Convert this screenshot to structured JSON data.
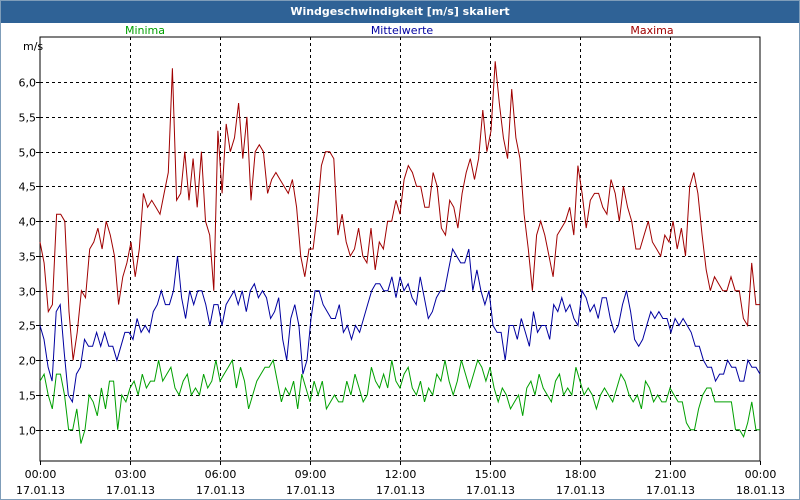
{
  "window": {
    "title": "Windgeschwindigkeit [m/s] skaliert"
  },
  "chart_data": {
    "type": "line",
    "title": "Windgeschwindigkeit [m/s] skaliert",
    "ylabel": "m/s",
    "xlabel": "",
    "ylim": [
      0.55,
      6.65
    ],
    "xlim": [
      0,
      24
    ],
    "grid": true,
    "yticks": [
      1.0,
      1.5,
      2.0,
      2.5,
      3.0,
      3.5,
      4.0,
      4.5,
      5.0,
      5.5,
      6.0
    ],
    "ytick_labels": [
      "1,0",
      "1,5",
      "2,0",
      "2,5",
      "3,0",
      "3,5",
      "4,0",
      "4,5",
      "5,0",
      "5,5",
      "6,0"
    ],
    "xtick_labels": [
      {
        "time": "00:00",
        "date": "17.01.13"
      },
      {
        "time": "03:00",
        "date": "17.01.13"
      },
      {
        "time": "06:00",
        "date": "17.01.13"
      },
      {
        "time": "09:00",
        "date": "17.01.13"
      },
      {
        "time": "12:00",
        "date": "17.01.13"
      },
      {
        "time": "15:00",
        "date": "17.01.13"
      },
      {
        "time": "18:00",
        "date": "17.01.13"
      },
      {
        "time": "21:00",
        "date": "17.01.13"
      },
      {
        "time": "00:00",
        "date": "18.01.13"
      }
    ],
    "series": [
      {
        "name": "Minima",
        "color": "#00a000",
        "values": [
          1.7,
          1.8,
          1.5,
          1.3,
          1.8,
          1.8,
          1.5,
          1.0,
          1.0,
          1.3,
          0.8,
          1.0,
          1.5,
          1.4,
          1.2,
          1.6,
          1.3,
          1.7,
          1.7,
          1.0,
          1.5,
          1.4,
          1.6,
          1.7,
          1.5,
          1.8,
          1.6,
          1.7,
          1.7,
          2.0,
          1.7,
          1.8,
          1.9,
          1.6,
          1.5,
          1.7,
          1.8,
          1.5,
          1.6,
          1.5,
          1.8,
          1.6,
          1.7,
          2.0,
          1.7,
          1.8,
          1.9,
          2.0,
          1.6,
          1.9,
          1.7,
          1.3,
          1.5,
          1.7,
          1.8,
          1.9,
          1.9,
          2.0,
          1.7,
          1.4,
          1.6,
          1.5,
          1.7,
          1.3,
          1.8,
          1.6,
          1.4,
          1.7,
          1.5,
          1.7,
          1.3,
          1.4,
          1.5,
          1.4,
          1.4,
          1.7,
          1.5,
          1.8,
          1.6,
          1.4,
          1.5,
          1.9,
          1.7,
          1.6,
          1.8,
          1.6,
          2.0,
          1.7,
          1.6,
          1.8,
          1.9,
          1.6,
          1.5,
          1.7,
          1.4,
          1.6,
          1.5,
          1.8,
          1.7,
          2.0,
          1.7,
          1.5,
          1.7,
          2.0,
          1.8,
          1.6,
          1.8,
          2.0,
          1.9,
          1.7,
          1.9,
          1.6,
          1.4,
          1.6,
          1.5,
          1.3,
          1.4,
          1.5,
          1.2,
          1.6,
          1.7,
          1.5,
          1.8,
          1.6,
          1.5,
          1.4,
          1.7,
          1.8,
          1.5,
          1.6,
          1.5,
          1.9,
          1.7,
          1.5,
          1.6,
          1.5,
          1.3,
          1.5,
          1.6,
          1.5,
          1.4,
          1.6,
          1.8,
          1.7,
          1.5,
          1.4,
          1.5,
          1.3,
          1.7,
          1.6,
          1.4,
          1.5,
          1.4,
          1.4,
          1.6,
          1.5,
          1.4,
          1.4,
          1.1,
          1.0,
          1.0,
          1.3,
          1.5,
          1.6,
          1.6,
          1.4,
          1.4,
          1.4,
          1.4,
          1.4,
          1.0,
          1.0,
          0.9,
          1.1,
          1.4,
          1.0,
          1.0
        ]
      },
      {
        "name": "Mittelwerte",
        "color": "#0000a0",
        "values": [
          2.5,
          2.3,
          1.9,
          1.7,
          2.7,
          2.8,
          2.1,
          1.5,
          1.4,
          1.8,
          1.9,
          2.3,
          2.2,
          2.2,
          2.4,
          2.2,
          2.4,
          2.2,
          2.2,
          2.0,
          2.2,
          2.4,
          2.4,
          2.3,
          2.6,
          2.4,
          2.5,
          2.4,
          2.7,
          2.8,
          3.0,
          2.8,
          2.8,
          3.0,
          3.5,
          2.9,
          2.6,
          3.0,
          2.8,
          3.0,
          3.0,
          2.8,
          2.5,
          2.8,
          2.8,
          2.5,
          2.8,
          2.9,
          3.0,
          2.8,
          3.0,
          2.7,
          3.0,
          3.1,
          2.9,
          3.0,
          2.9,
          2.6,
          2.7,
          2.9,
          2.3,
          2.0,
          2.6,
          2.8,
          2.5,
          1.8,
          2.0,
          2.6,
          3.0,
          3.0,
          2.8,
          2.7,
          2.6,
          2.6,
          2.8,
          2.4,
          2.5,
          2.3,
          2.5,
          2.4,
          2.6,
          2.8,
          3.0,
          3.1,
          3.1,
          3.0,
          3.0,
          3.2,
          2.9,
          3.2,
          3.0,
          3.1,
          2.9,
          2.8,
          3.2,
          2.9,
          2.6,
          2.7,
          2.9,
          3.0,
          3.0,
          3.3,
          3.6,
          3.5,
          3.4,
          3.4,
          3.6,
          3.0,
          3.3,
          3.0,
          2.8,
          3.0,
          2.5,
          2.4,
          2.4,
          2.0,
          2.5,
          2.5,
          2.3,
          2.6,
          2.4,
          2.2,
          2.7,
          2.4,
          2.5,
          2.5,
          2.3,
          2.8,
          2.7,
          2.9,
          2.7,
          2.8,
          2.6,
          2.5,
          3.0,
          2.9,
          2.7,
          2.8,
          2.6,
          2.9,
          2.9,
          2.6,
          2.4,
          2.5,
          2.8,
          3.0,
          2.7,
          2.3,
          2.2,
          2.3,
          2.5,
          2.7,
          2.6,
          2.7,
          2.6,
          2.6,
          2.4,
          2.6,
          2.5,
          2.6,
          2.5,
          2.4,
          2.2,
          2.2,
          2.0,
          1.9,
          1.9,
          1.7,
          1.8,
          1.8,
          2.0,
          1.9,
          1.9,
          1.7,
          1.7,
          2.0,
          1.9,
          1.9,
          1.8
        ]
      },
      {
        "name": "Maxima",
        "color": "#a00000",
        "values": [
          3.7,
          3.4,
          2.7,
          2.8,
          4.1,
          4.1,
          4.0,
          2.7,
          2.0,
          2.4,
          3.0,
          2.9,
          3.6,
          3.7,
          3.9,
          3.6,
          4.0,
          3.8,
          3.5,
          2.8,
          3.2,
          3.4,
          3.7,
          3.2,
          3.6,
          4.4,
          4.2,
          4.3,
          4.2,
          4.1,
          4.4,
          4.7,
          6.2,
          4.3,
          4.4,
          5.0,
          4.3,
          4.9,
          4.2,
          5.0,
          4.0,
          3.8,
          3.0,
          5.3,
          4.4,
          5.4,
          5.0,
          5.2,
          5.7,
          4.9,
          5.5,
          4.3,
          5.0,
          5.1,
          5.0,
          4.4,
          4.6,
          4.7,
          4.6,
          4.5,
          4.4,
          4.6,
          4.2,
          3.5,
          3.2,
          3.6,
          3.6,
          4.1,
          4.8,
          5.0,
          5.0,
          4.9,
          3.8,
          4.1,
          3.7,
          3.5,
          3.6,
          3.9,
          3.5,
          3.4,
          3.9,
          3.3,
          3.7,
          3.6,
          4.0,
          4.0,
          4.3,
          4.1,
          4.6,
          4.8,
          4.7,
          4.5,
          4.5,
          4.2,
          4.2,
          4.7,
          4.5,
          3.9,
          3.8,
          4.3,
          4.2,
          3.9,
          4.4,
          4.7,
          4.9,
          4.6,
          4.9,
          5.6,
          5.0,
          5.3,
          6.3,
          5.7,
          5.2,
          4.9,
          5.9,
          5.2,
          4.9,
          4.1,
          3.6,
          3.0,
          3.8,
          4.0,
          3.8,
          3.5,
          3.2,
          3.8,
          3.9,
          4.0,
          4.2,
          3.8,
          4.8,
          4.4,
          3.9,
          4.3,
          4.4,
          4.4,
          4.2,
          4.1,
          4.6,
          4.4,
          4.0,
          4.5,
          4.2,
          4.0,
          3.6,
          3.6,
          3.8,
          4.0,
          3.7,
          3.6,
          3.5,
          3.8,
          3.7,
          4.0,
          3.6,
          3.9,
          3.5,
          4.5,
          4.7,
          4.4,
          3.8,
          3.3,
          3.0,
          3.2,
          3.1,
          3.0,
          3.0,
          3.2,
          3.0,
          3.0,
          2.6,
          2.5,
          3.4,
          2.8,
          2.8
        ]
      }
    ]
  }
}
